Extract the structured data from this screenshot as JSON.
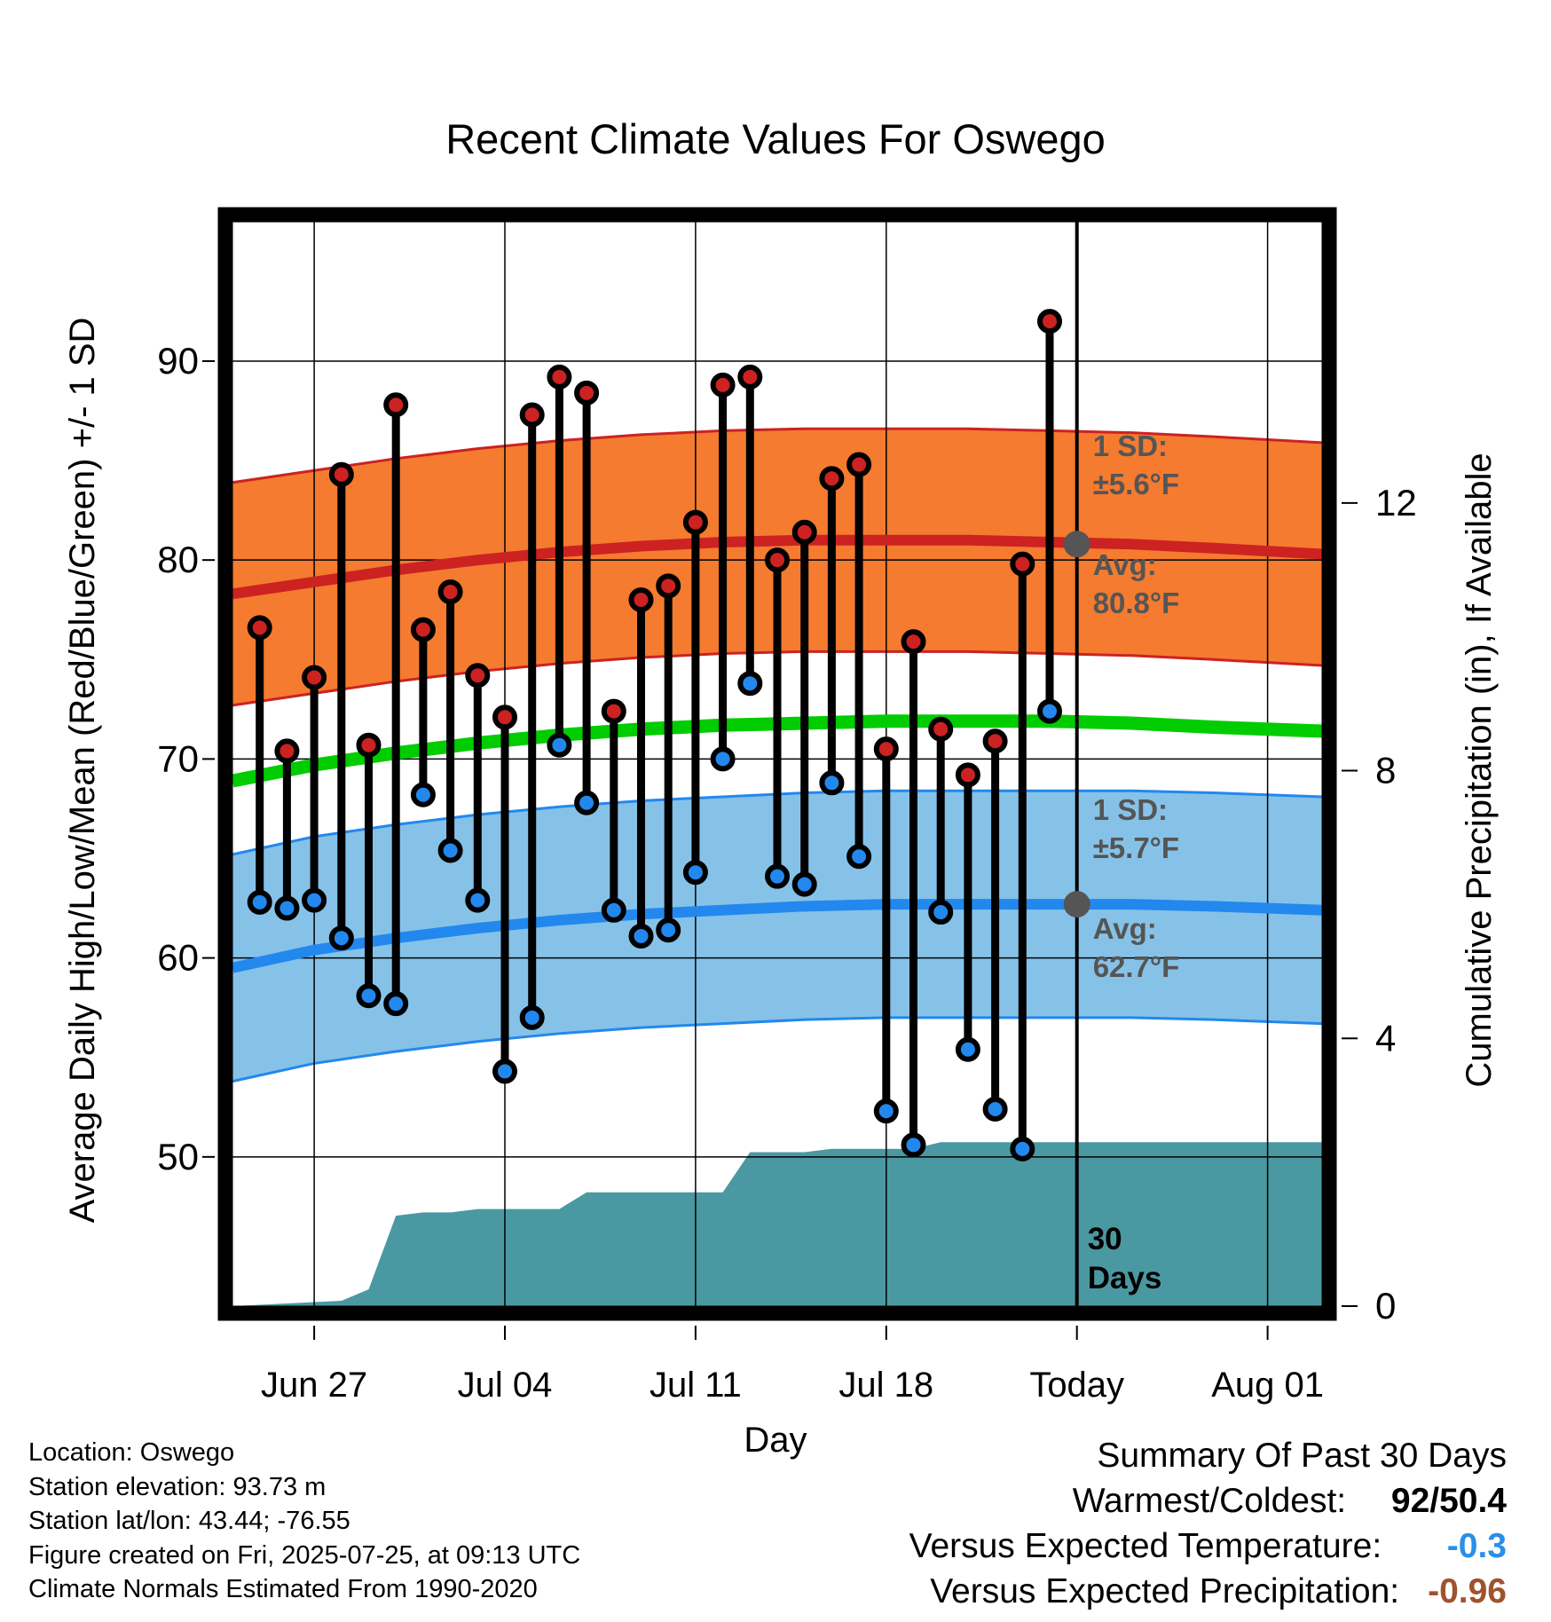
{
  "title": "Recent Climate Values For Oswego",
  "chart_data": {
    "type": "line",
    "title": "Recent Climate Values For Oswego",
    "xlabel": "Day",
    "ylabel": "Average Daily High/Low/Mean (Red/Blue/Green) +/- 1 SD",
    "y2label": "Cumulative Precipitation (in), If Available",
    "ylim": [
      42.5,
      97
    ],
    "y2lim": [
      0,
      16.2
    ],
    "y_ticks": [
      50,
      60,
      70,
      80,
      90
    ],
    "y2_ticks": [
      0,
      4,
      8,
      12
    ],
    "x_tick_labels": [
      "Jun 27",
      "Jul 04",
      "Jul 11",
      "Jul 18",
      "Today",
      "Aug 01"
    ],
    "x_range": [
      "Jun 24",
      "Aug 03"
    ],
    "x_ticks": [
      "Jun 27",
      "Jul 04",
      "Jul 11",
      "Jul 18",
      "Jul 25",
      "Aug 01"
    ],
    "today": "Jul 25",
    "dates": [
      "Jun 25",
      "Jun 26",
      "Jun 27",
      "Jun 28",
      "Jun 29",
      "Jun 30",
      "Jul 01",
      "Jul 02",
      "Jul 03",
      "Jul 04",
      "Jul 05",
      "Jul 06",
      "Jul 07",
      "Jul 08",
      "Jul 09",
      "Jul 10",
      "Jul 11",
      "Jul 12",
      "Jul 13",
      "Jul 14",
      "Jul 15",
      "Jul 16",
      "Jul 17",
      "Jul 18",
      "Jul 19",
      "Jul 20",
      "Jul 21",
      "Jul 22",
      "Jul 23",
      "Jul 24"
    ],
    "series": [
      {
        "name": "Daily High",
        "color": "#cc2222",
        "values": [
          76.6,
          70.4,
          74.1,
          84.3,
          70.7,
          87.8,
          76.5,
          78.4,
          74.2,
          72.1,
          87.3,
          89.2,
          88.4,
          72.4,
          78.0,
          78.7,
          81.9,
          88.8,
          89.2,
          80.0,
          81.4,
          84.1,
          84.8,
          70.5,
          75.9,
          71.5,
          69.2,
          70.9,
          79.8,
          92.0
        ]
      },
      {
        "name": "Daily Low",
        "color": "#2288ee",
        "values": [
          62.8,
          62.5,
          62.9,
          61.0,
          58.1,
          57.7,
          68.2,
          65.4,
          62.9,
          54.3,
          57.0,
          70.7,
          67.8,
          62.4,
          61.1,
          61.4,
          64.3,
          70.0,
          73.8,
          64.1,
          63.7,
          68.8,
          65.1,
          52.3,
          50.6,
          62.3,
          55.4,
          52.4,
          50.4,
          72.4
        ]
      }
    ],
    "normals": {
      "dates": [
        "Jun 24",
        "Jun 27",
        "Jun 30",
        "Jul 03",
        "Jul 06",
        "Jul 09",
        "Jul 12",
        "Jul 15",
        "Jul 18",
        "Jul 21",
        "Jul 24",
        "Jul 27",
        "Jul 30",
        "Aug 03"
      ],
      "avg_high": [
        78.3,
        78.9,
        79.5,
        80.0,
        80.4,
        80.7,
        80.9,
        81.0,
        81.0,
        81.0,
        80.9,
        80.8,
        80.6,
        80.3
      ],
      "avg_low": [
        59.5,
        60.4,
        61.0,
        61.5,
        61.9,
        62.2,
        62.4,
        62.6,
        62.7,
        62.7,
        62.7,
        62.7,
        62.6,
        62.4
      ],
      "avg_mean": [
        68.9,
        69.7,
        70.3,
        70.8,
        71.2,
        71.5,
        71.7,
        71.8,
        71.9,
        71.9,
        71.9,
        71.8,
        71.6,
        71.4
      ],
      "high_sd": 5.6,
      "low_sd": 5.7
    },
    "precip": {
      "dates": [
        "Jun 24",
        "Jun 28",
        "Jun 29",
        "Jun 30",
        "Jul 01",
        "Jul 02",
        "Jul 03",
        "Jul 04",
        "Jul 05",
        "Jul 06",
        "Jul 07",
        "Jul 08",
        "Jul 12",
        "Jul 13",
        "Jul 14",
        "Jul 15",
        "Jul 16",
        "Jul 17",
        "Jul 18",
        "Jul 19",
        "Jul 20",
        "Jul 21",
        "Aug 03"
      ],
      "values": [
        0,
        0.08,
        0.25,
        1.35,
        1.4,
        1.4,
        1.45,
        1.45,
        1.45,
        1.45,
        1.7,
        1.7,
        1.7,
        2.3,
        2.3,
        2.3,
        2.35,
        2.35,
        2.35,
        2.35,
        2.45,
        2.45,
        2.45
      ],
      "color": "#4a99a2"
    },
    "annotations": {
      "high_sd_label": "1 SD:",
      "high_sd_value": "±5.6°F",
      "high_avg_label": "Avg:",
      "high_avg_value": "80.8°F",
      "low_sd_label": "1 SD:",
      "low_sd_value": "±5.7°F",
      "low_avg_label": "Avg:",
      "low_avg_value": "62.7°F",
      "days_number": "30",
      "days_word": "Days"
    },
    "colors": {
      "high_band": "#f47b2f",
      "high_line": "#cc2222",
      "low_band": "#86c2e8",
      "low_line": "#2288ee",
      "mean_line": "#00cc00",
      "precip": "#4a99a2",
      "avg_marker": "#555555",
      "annotation_text": "#555555"
    }
  },
  "info": {
    "location": "Location: Oswego",
    "elevation": "Station elevation: 93.73 m",
    "latlon": "Station lat/lon: 43.44; -76.55",
    "created": "Figure created on Fri, 2025-07-25, at 09:13 UTC",
    "normals": "Climate Normals Estimated From 1990-2020"
  },
  "summary": {
    "heading": "Summary Of Past 30 Days",
    "warm_cold_label": "Warmest/Coldest:",
    "warm_cold_value": "92/50.4",
    "temp_label": "Versus Expected Temperature:",
    "temp_value": "-0.3",
    "temp_color": "#2a8fe8",
    "precip_label": "Versus Expected Precipitation:",
    "precip_value": "-0.96",
    "precip_color": "#a0522d"
  }
}
